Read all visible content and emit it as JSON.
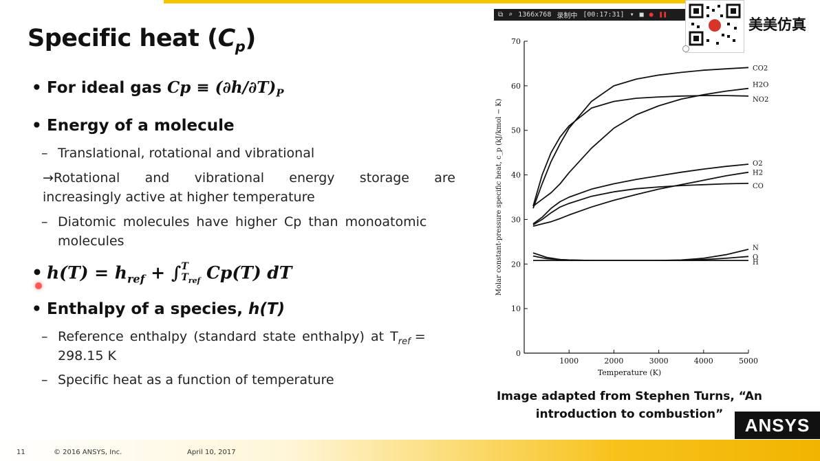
{
  "title": {
    "text": "Specific heat (",
    "sym": "C",
    "sub": "p",
    "close": ")"
  },
  "bullets": {
    "ideal_gas_label": "For ideal gas",
    "ideal_gas_eq": "Cp ≡ (∂h/∂T)",
    "ideal_gas_eq_sub": "P",
    "energy_title": "Energy of a molecule",
    "energy_sub1": "Translational, rotational and vibrational",
    "arrow_line1": "→Rotational and vibrational energy storage are",
    "arrow_line2": "increasingly active at higher temperature",
    "diatomic_line1": "Diatomic molecules have higher Cp than monoatomic",
    "diatomic_line2": "molecules",
    "enthalpy_eq": "h(T) = h",
    "enthalpy_eq_ref": "ref",
    "enthalpy_eq_rest": " + ∫",
    "enthalpy_eq_int_top": "T",
    "enthalpy_eq_int_bot": "T",
    "enthalpy_eq_int_bot_sub": "ref",
    "enthalpy_eq_tail": " Cp(T) dT",
    "enthalpy_species": "Enthalpy of a species, ",
    "enthalpy_species_it": "h(T)",
    "ref_line1": "Reference enthalpy (standard state enthalpy) at T",
    "ref_line1_sub": "ref",
    "ref_line1_end": " =",
    "ref_line2": "298.15 K",
    "specific_heat_fn": "Specific heat as a function of temperature"
  },
  "recorder": {
    "resolution": "1366x768",
    "label": "录制中",
    "time": "[00:17:31]"
  },
  "brand": "美美仿真",
  "caption": {
    "line1": "Image adapted from Stephen Turns, “An",
    "line2": "introduction to combustion”"
  },
  "footer": {
    "page": "11",
    "copyright": "© 2016 ANSYS, Inc.",
    "date": "April 10, 2017"
  },
  "logo": "ANSYS",
  "chart_data": {
    "type": "line",
    "xlabel": "Temperature (K)",
    "ylabel": "Molar constant-pressure specific heat, c_p (kJ/kmol − K)",
    "xlim": [
      0,
      5000
    ],
    "ylim": [
      0,
      70
    ],
    "xticks": [
      1000,
      2000,
      3000,
      4000,
      5000
    ],
    "yticks": [
      0,
      10,
      20,
      30,
      40,
      50,
      60,
      70
    ],
    "grid": false,
    "series": [
      {
        "name": "CO2",
        "x": [
          200,
          400,
          600,
          800,
          1000,
          1500,
          2000,
          2500,
          3000,
          3500,
          4000,
          4500,
          5000
        ],
        "y": [
          32.5,
          38,
          43,
          47,
          50.5,
          56.5,
          60,
          61.5,
          62.4,
          63,
          63.5,
          63.8,
          64.1
        ]
      },
      {
        "name": "H2O",
        "x": [
          200,
          400,
          600,
          800,
          1000,
          1500,
          2000,
          2500,
          3000,
          3500,
          4000,
          4500,
          5000
        ],
        "y": [
          33,
          34.5,
          36,
          38,
          40.5,
          46,
          50.5,
          53.5,
          55.5,
          57,
          58,
          58.8,
          59.4
        ]
      },
      {
        "name": "NO2",
        "x": [
          200,
          400,
          600,
          800,
          1000,
          1500,
          2000,
          2500,
          3000,
          3500,
          4000,
          4500,
          5000
        ],
        "y": [
          33,
          40,
          45,
          48.5,
          51,
          55,
          56.5,
          57.2,
          57.5,
          57.7,
          57.8,
          57.8,
          57.7
        ]
      },
      {
        "name": "O2",
        "x": [
          200,
          400,
          600,
          800,
          1000,
          1500,
          2000,
          2500,
          3000,
          3500,
          4000,
          4500,
          5000
        ],
        "y": [
          29,
          30.5,
          32.5,
          34,
          35,
          36.8,
          38,
          39,
          39.8,
          40.6,
          41.3,
          41.9,
          42.4
        ]
      },
      {
        "name": "H2",
        "x": [
          200,
          400,
          600,
          800,
          1000,
          1500,
          2000,
          2500,
          3000,
          3500,
          4000,
          4500,
          5000
        ],
        "y": [
          28.5,
          29,
          29.5,
          30.2,
          31,
          32.8,
          34.3,
          35.6,
          36.8,
          37.8,
          38.8,
          39.8,
          40.6
        ]
      },
      {
        "name": "CO",
        "x": [
          200,
          400,
          600,
          800,
          1000,
          1500,
          2000,
          2500,
          3000,
          3500,
          4000,
          4500,
          5000
        ],
        "y": [
          28.8,
          30,
          31.5,
          32.8,
          33.6,
          35.2,
          36.2,
          36.9,
          37.3,
          37.6,
          37.8,
          38,
          38.1
        ]
      },
      {
        "name": "N",
        "x": [
          200,
          500,
          800,
          1000,
          1500,
          2000,
          2500,
          3000,
          3500,
          4000,
          4500,
          5000
        ],
        "y": [
          22.5,
          21.5,
          21,
          20.9,
          20.8,
          20.8,
          20.8,
          20.8,
          20.9,
          21.3,
          22.1,
          23.3
        ]
      },
      {
        "name": "O",
        "x": [
          200,
          500,
          800,
          1000,
          1500,
          2000,
          2500,
          3000,
          3500,
          4000,
          4500,
          5000
        ],
        "y": [
          21.8,
          21.2,
          21,
          20.9,
          20.8,
          20.8,
          20.8,
          20.8,
          20.8,
          21,
          21.3,
          21.7
        ]
      },
      {
        "name": "H",
        "x": [
          200,
          5000
        ],
        "y": [
          20.8,
          20.8
        ]
      }
    ]
  }
}
